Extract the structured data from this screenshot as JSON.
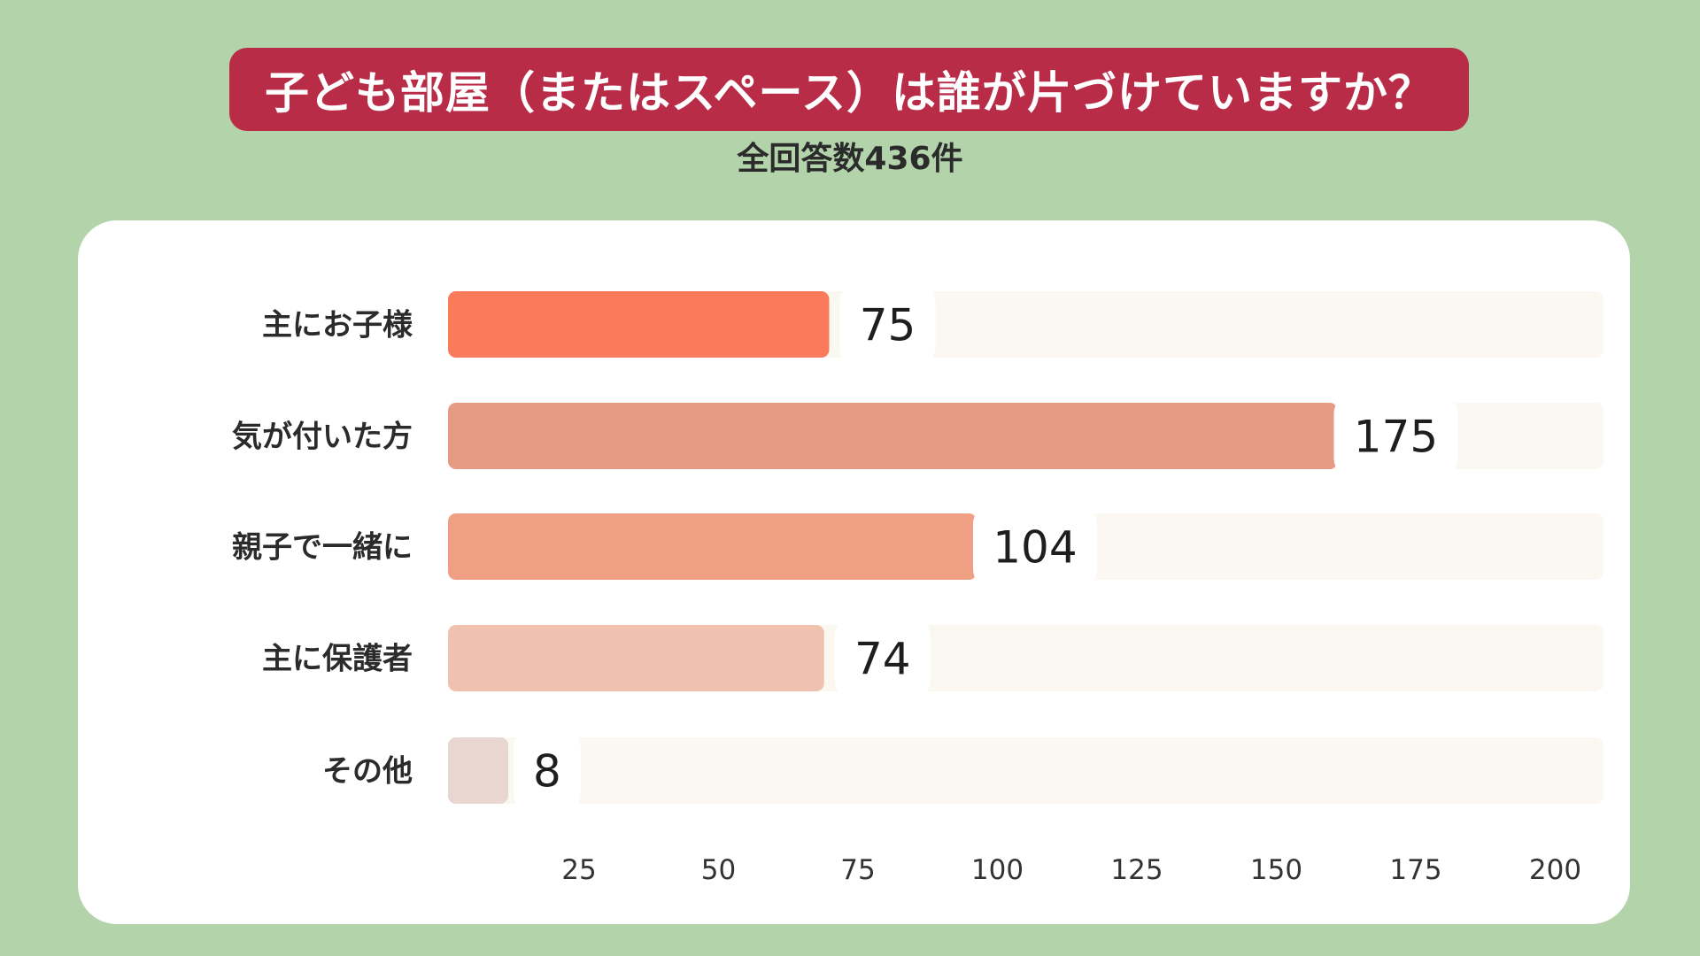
{
  "title": "子ども部屋（またはスペース）は誰が片づけていますか？",
  "subtitle": "全回答数436件",
  "chart_data": {
    "type": "bar",
    "orientation": "horizontal",
    "categories": [
      "主にお子様",
      "気が付いた方",
      "親子で一緒に",
      "主に保護者",
      "その他"
    ],
    "values": [
      75,
      175,
      104,
      74,
      8
    ],
    "colors": [
      "#f97b5b",
      "#e59a83",
      "#ee9f84",
      "#f1c1af",
      "#e8d6d0"
    ],
    "x_ticks": [
      "25",
      "50",
      "75",
      "100",
      "125",
      "150",
      "175",
      "200"
    ],
    "xlim": [
      0,
      225
    ],
    "grid": false,
    "legend": "none",
    "title": "子ども部屋（またはスペース）は誰が片づけていますか？",
    "subtitle": "全回答数436件"
  },
  "colors": {
    "background": "#b3d3aa",
    "banner": "#b82c47",
    "panel": "#ffffff",
    "track": "#fbf8f2"
  }
}
